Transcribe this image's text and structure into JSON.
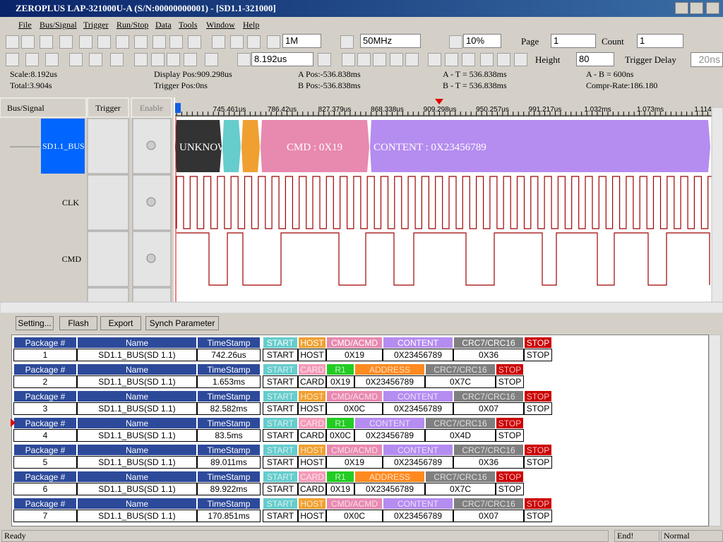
{
  "window": {
    "title": "ZEROPLUS LAP-321000U-A (S/N:00000000001) - [SD1.1-321000]"
  },
  "menu": [
    "File",
    "Bus/Signal",
    "Trigger",
    "Run/Stop",
    "Data",
    "Tools",
    "Window",
    "Help"
  ],
  "toolbar": {
    "samples": "1M",
    "frequency": "50MHz",
    "zoom": "10%",
    "page_label": "Page",
    "page": "1",
    "count_label": "Count",
    "count": "1",
    "time": "8.192us",
    "height_label": "Height",
    "height": "80",
    "trigger_delay_label": "Trigger Delay",
    "trigger_delay": "20ns"
  },
  "info": [
    "Scale:8.192us",
    "Total:3.904s",
    "Display Pos:909.298us",
    "Trigger Pos:0ns",
    "A Pos:-536.838ms",
    "B Pos:-536.838ms",
    "A - T = 536.838ms",
    "B - T = 536.838ms",
    "A - B = 600ns",
    "Compr-Rate:186.180"
  ],
  "columns": [
    "Bus/Signal",
    "Trigger",
    "Enable"
  ],
  "timeline": [
    "745.461us",
    "786.42us",
    "827.379us",
    "868.338us",
    "909.298us",
    "950.257us",
    "991.217us",
    "1.032ms",
    "1.073ms",
    "1.114"
  ],
  "signals": [
    "SD1.1_BUS",
    "CLK",
    "CMD"
  ],
  "bus_segments": [
    "UNKNOW",
    "CMD : 0X19",
    "CONTENT : 0X23456789"
  ],
  "buttons": [
    "Setting...",
    "Flash",
    "Export",
    "Synch Parameter"
  ],
  "packet_headers": [
    "Package #",
    "Name",
    "TimeStamp"
  ],
  "packets": [
    {
      "number": "1",
      "name": "SD1.1_BUS(SD 1.1)",
      "timestamp": "742.26us",
      "fields": [
        {
          "label": "START",
          "value": "START",
          "color": "#66cccc"
        },
        {
          "label": "HOST",
          "value": "HOST",
          "color": "#f0a030"
        },
        {
          "label": "CMD/ACMD",
          "value": "0X19",
          "color": "#e889b0"
        },
        {
          "label": "CONTENT",
          "value": "0X23456789",
          "color": "#b58cf0"
        },
        {
          "label": "CRC7/CRC16",
          "value": "0X36",
          "color": "#7f7f7f"
        },
        {
          "label": "STOP",
          "value": "STOP",
          "color": "#cc0000"
        }
      ]
    },
    {
      "number": "2",
      "name": "SD1.1_BUS(SD 1.1)",
      "timestamp": "1.653ms",
      "fields": [
        {
          "label": "START",
          "value": "START",
          "color": "#66cccc"
        },
        {
          "label": "CARD",
          "value": "CARD",
          "color": "#f49ab8"
        },
        {
          "label": "R1",
          "value": "0X19",
          "color": "#22cc22"
        },
        {
          "label": "ADDRESS",
          "value": "0X23456789",
          "color": "#ff8a20"
        },
        {
          "label": "CRC7/CRC16",
          "value": "0X7C",
          "color": "#7f7f7f"
        },
        {
          "label": "STOP",
          "value": "STOP",
          "color": "#cc0000"
        }
      ]
    },
    {
      "number": "3",
      "name": "SD1.1_BUS(SD 1.1)",
      "timestamp": "82.582ms",
      "fields": [
        {
          "label": "START",
          "value": "START",
          "color": "#66cccc"
        },
        {
          "label": "HOST",
          "value": "HOST",
          "color": "#f0a030"
        },
        {
          "label": "CMD/ACMD",
          "value": "0X0C",
          "color": "#e889b0"
        },
        {
          "label": "CONTENT",
          "value": "0X23456789",
          "color": "#b58cf0"
        },
        {
          "label": "CRC7/CRC16",
          "value": "0X07",
          "color": "#7f7f7f"
        },
        {
          "label": "STOP",
          "value": "STOP",
          "color": "#cc0000"
        }
      ]
    },
    {
      "number": "4",
      "name": "SD1.1_BUS(SD 1.1)",
      "timestamp": "83.5ms",
      "fields": [
        {
          "label": "START",
          "value": "START",
          "color": "#66cccc"
        },
        {
          "label": "CARD",
          "value": "CARD",
          "color": "#f49ab8"
        },
        {
          "label": "R1",
          "value": "0X0C",
          "color": "#22cc22"
        },
        {
          "label": "CONTENT",
          "value": "0X23456789",
          "color": "#b58cf0"
        },
        {
          "label": "CRC7/CRC16",
          "value": "0X4D",
          "color": "#7f7f7f"
        },
        {
          "label": "STOP",
          "value": "STOP",
          "color": "#cc0000"
        }
      ]
    },
    {
      "number": "5",
      "name": "SD1.1_BUS(SD 1.1)",
      "timestamp": "89.011ms",
      "fields": [
        {
          "label": "START",
          "value": "START",
          "color": "#66cccc"
        },
        {
          "label": "HOST",
          "value": "HOST",
          "color": "#f0a030"
        },
        {
          "label": "CMD/ACMD",
          "value": "0X19",
          "color": "#e889b0"
        },
        {
          "label": "CONTENT",
          "value": "0X23456789",
          "color": "#b58cf0"
        },
        {
          "label": "CRC7/CRC16",
          "value": "0X36",
          "color": "#7f7f7f"
        },
        {
          "label": "STOP",
          "value": "STOP",
          "color": "#cc0000"
        }
      ]
    },
    {
      "number": "6",
      "name": "SD1.1_BUS(SD 1.1)",
      "timestamp": "89.922ms",
      "fields": [
        {
          "label": "START",
          "value": "START",
          "color": "#66cccc"
        },
        {
          "label": "CARD",
          "value": "CARD",
          "color": "#f49ab8"
        },
        {
          "label": "R1",
          "value": "0X19",
          "color": "#22cc22"
        },
        {
          "label": "ADDRESS",
          "value": "0X23456789",
          "color": "#ff8a20"
        },
        {
          "label": "CRC7/CRC16",
          "value": "0X7C",
          "color": "#7f7f7f"
        },
        {
          "label": "STOP",
          "value": "STOP",
          "color": "#cc0000"
        }
      ]
    },
    {
      "number": "7",
      "name": "SD1.1_BUS(SD 1.1)",
      "timestamp": "170.851ms",
      "fields": [
        {
          "label": "START",
          "value": "START",
          "color": "#66cccc"
        },
        {
          "label": "HOST",
          "value": "HOST",
          "color": "#f0a030"
        },
        {
          "label": "CMD/ACMD",
          "value": "0X0C",
          "color": "#e889b0"
        },
        {
          "label": "CONTENT",
          "value": "0X23456789",
          "color": "#b58cf0"
        },
        {
          "label": "CRC7/CRC16",
          "value": "0X07",
          "color": "#7f7f7f"
        },
        {
          "label": "STOP",
          "value": "STOP",
          "color": "#cc0000"
        }
      ]
    }
  ],
  "status": [
    "Ready",
    "End!",
    "Normal"
  ]
}
